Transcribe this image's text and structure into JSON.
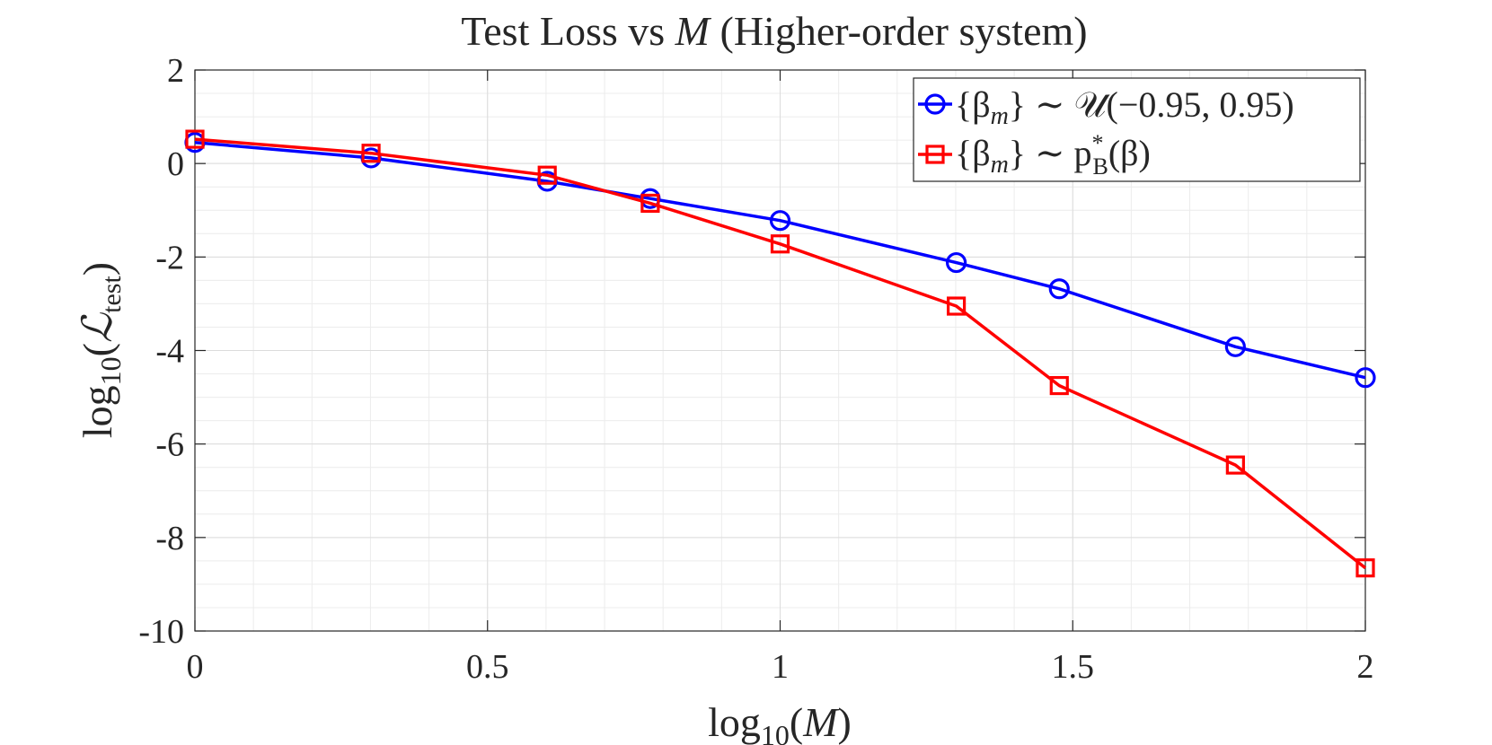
{
  "chart_data": {
    "type": "line",
    "title": "Test Loss vs M (Higher-order system)",
    "title_parts": [
      "Test Loss vs ",
      "M",
      " (Higher-order system)"
    ],
    "xlabel": "log10(M)",
    "xlabel_parts": [
      "log",
      "10",
      "(",
      "M",
      ")"
    ],
    "ylabel": "log10(Ltest)",
    "ylabel_parts": [
      "log",
      "10",
      "(",
      "ℒ",
      "test",
      ")"
    ],
    "xlim": [
      0,
      2
    ],
    "ylim": [
      -10,
      2
    ],
    "xticks": [
      0,
      0.5,
      1,
      1.5,
      2
    ],
    "xtick_labels": [
      "0",
      "0.5",
      "1",
      "1.5",
      "2"
    ],
    "yticks": [
      -10,
      -8,
      -6,
      -4,
      -2,
      0,
      2
    ],
    "ytick_labels": [
      "-10",
      "-8",
      "-6",
      "-4",
      "-2",
      "0",
      "2"
    ],
    "grid": true,
    "minor_grid": true,
    "legend_location": "top-right",
    "x": [
      0,
      0.301,
      0.602,
      0.778,
      1.0,
      1.301,
      1.477,
      1.778,
      2.0
    ],
    "series": [
      {
        "name": "{βm} ~ U(−0.95, 0.95)",
        "legend_parts": [
          "{β",
          "m",
          "} ∼ 𝒰(−0.95, 0.95)"
        ],
        "color": "#0000ff",
        "marker": "circle",
        "values": [
          0.45,
          0.12,
          -0.38,
          -0.75,
          -1.22,
          -2.12,
          -2.68,
          -3.92,
          -4.58
        ]
      },
      {
        "name": "{βm} ~ p*B(β)",
        "legend_parts": [
          "{β",
          "m",
          "} ∼ p",
          "*",
          "B",
          "(β)"
        ],
        "color": "#ff0000",
        "marker": "square",
        "values": [
          0.52,
          0.22,
          -0.25,
          -0.85,
          -1.72,
          -3.05,
          -4.75,
          -6.45,
          -8.65
        ]
      }
    ]
  }
}
